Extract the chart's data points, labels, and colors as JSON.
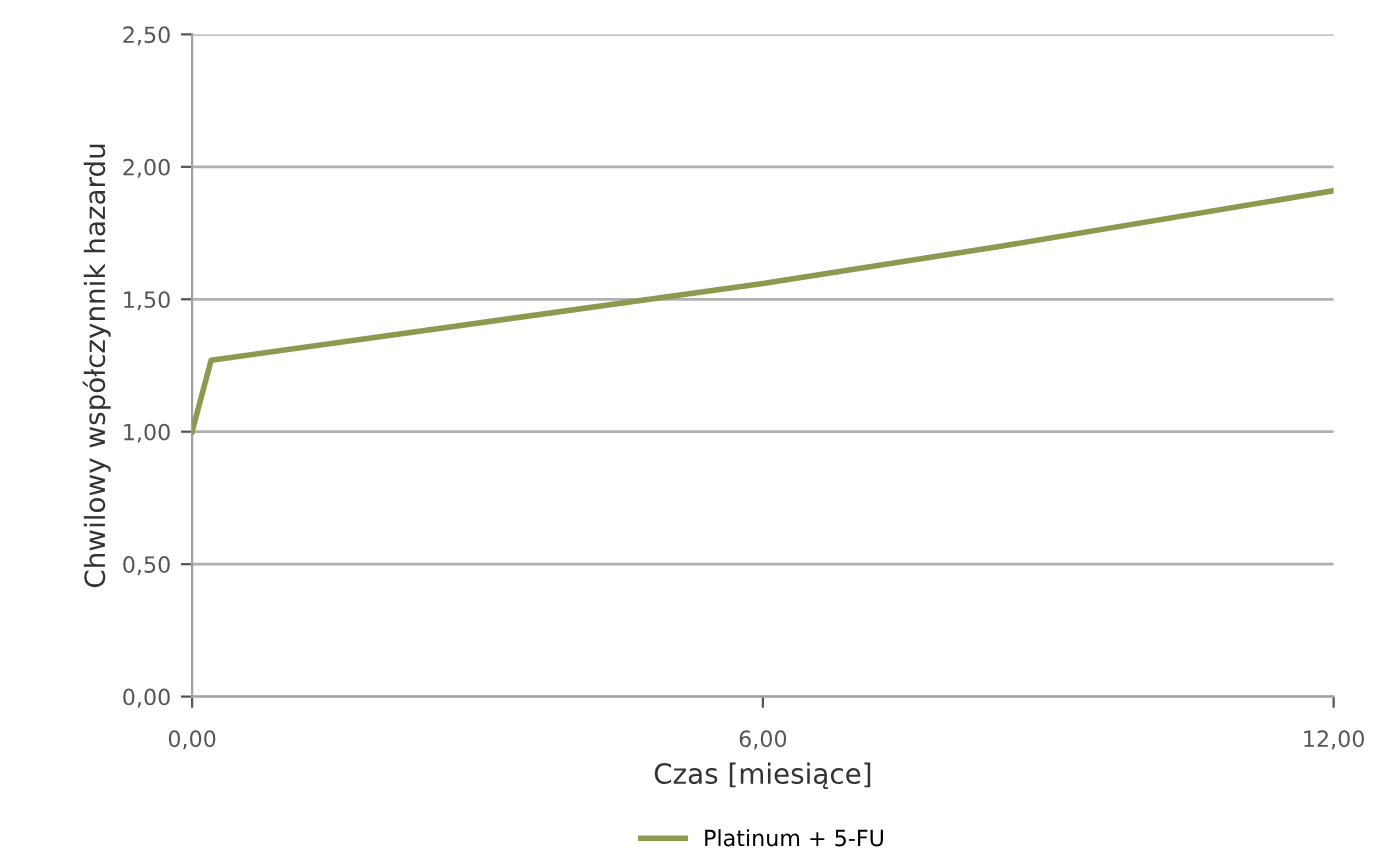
{
  "chart_data": {
    "type": "line",
    "xlabel": "Czas [miesiące]",
    "ylabel": "Chwilowy współczynnik hazardu",
    "series": [
      {
        "name": "Platinum + 5-FU",
        "color": "#8c9a50",
        "x": [
          0,
          0.2,
          6,
          8.5,
          12
        ],
        "values": [
          1.0,
          1.27,
          1.56,
          1.7,
          1.91
        ]
      }
    ],
    "xlim": [
      0,
      12
    ],
    "xticks": [
      {
        "value": 0,
        "label": "0,00"
      },
      {
        "value": 6,
        "label": "6,00"
      },
      {
        "value": 12,
        "label": "12,00"
      }
    ],
    "ylim": [
      0,
      2.5
    ],
    "yticks": [
      {
        "value": 0,
        "label": "0,00"
      },
      {
        "value": 0.5,
        "label": "0,50"
      },
      {
        "value": 1,
        "label": "1,00"
      },
      {
        "value": 1.5,
        "label": "1,50"
      },
      {
        "value": 2,
        "label": "2,00"
      },
      {
        "value": 2.5,
        "label": "2,50"
      }
    ],
    "grid": "y",
    "legend": "bottom",
    "marker": "none",
    "line_style": "solid"
  }
}
